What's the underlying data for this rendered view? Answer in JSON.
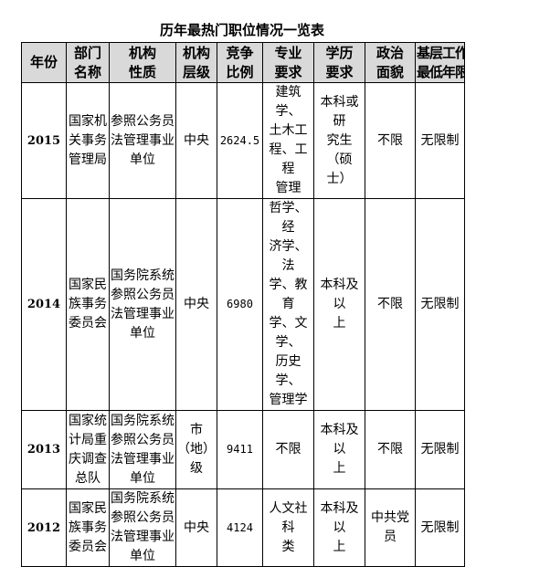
{
  "title": "历年最热门职位情况一览表",
  "header_bg": "#d9d9d9",
  "columns": [
    "年份",
    "部门\n名称",
    "机构\n性质",
    "机构\n层级",
    "竞争\n比例",
    "专业\n要求",
    "学历\n要求",
    "政治\n面貌",
    "基层工作\n最低年限"
  ],
  "rows": [
    {
      "year": "2015",
      "dept": "国家机\n关事务\n管理局",
      "nature": "参照公务员\n法管理事业\n单位",
      "level": "中央",
      "ratio": "2624.5",
      "major": "建筑学、\n土木工\n程、工程\n管理",
      "edu": "本科或研\n究生（硕\n士）",
      "political": "不限",
      "years": "无限制"
    },
    {
      "year": "2014",
      "dept": "国家民\n族事务\n委员会",
      "nature": "国务院系统\n参照公务员\n法管理事业\n单位",
      "level": "中央",
      "ratio": "6980",
      "major": "哲学、经\n济学、法\n学、教育\n学、文学、\n历史学、\n管理学",
      "edu": "本科及以\n上",
      "political": "不限",
      "years": "无限制"
    },
    {
      "year": "2013",
      "dept": "国家统\n计局重\n庆调查\n总队",
      "nature": "国务院系统\n参照公务员\n法管理事业\n单位",
      "level": "市（地）\n级",
      "ratio": "9411",
      "major": "不限",
      "edu": "本科及以\n上",
      "political": "不限",
      "years": "无限制"
    },
    {
      "year": "2012",
      "dept": "国家民\n族事务\n委员会",
      "nature": "国务院系统\n参照公务员\n法管理事业\n单位",
      "level": "中央",
      "ratio": "4124",
      "major": "人文社科\n类",
      "edu": "本科及以\n上",
      "political": "中共党员",
      "years": "无限制"
    }
  ]
}
